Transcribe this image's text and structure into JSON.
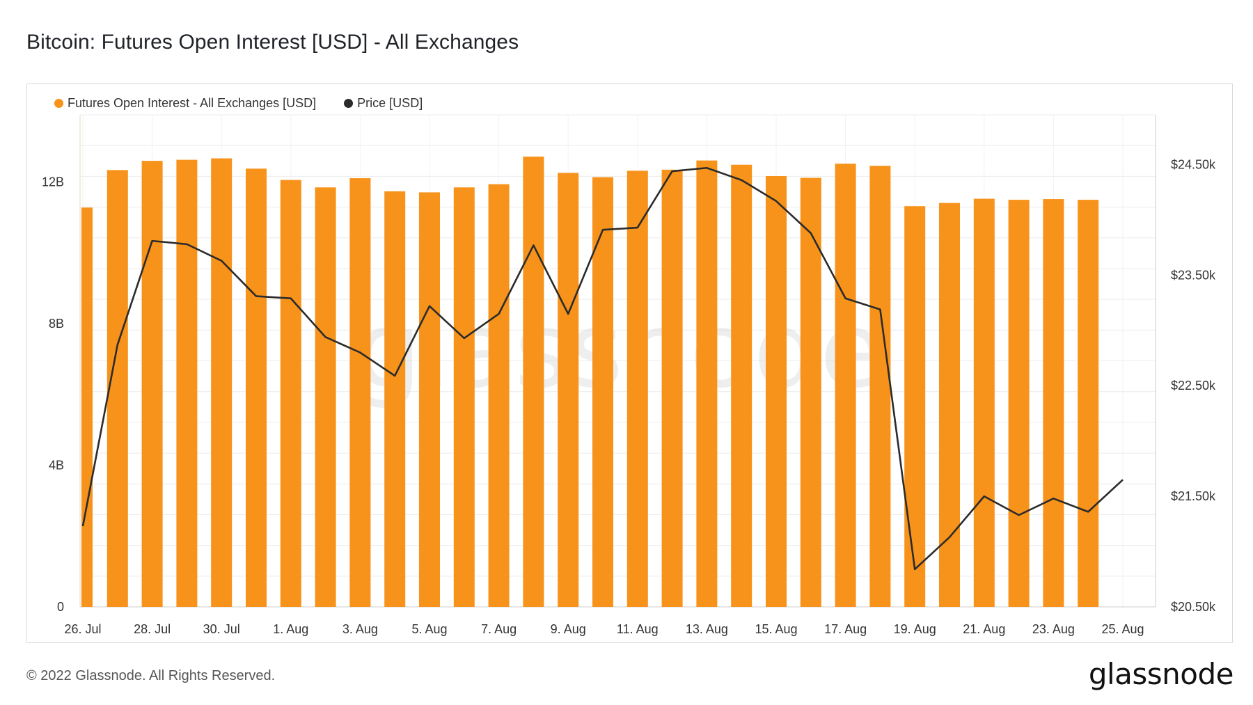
{
  "title": "Bitcoin: Futures Open Interest [USD] - All Exchanges",
  "footer": {
    "copyright": "© 2022 Glassnode. All Rights Reserved.",
    "brand": "glassnode"
  },
  "watermark": "glassnode",
  "colors": {
    "bars": "#F7931A",
    "price_line": "#2b2b2b",
    "grid": "#ececec",
    "axis": "#d9d9d9"
  },
  "chart_data": {
    "type": "bar",
    "title": "Bitcoin: Futures Open Interest [USD] - All Exchanges",
    "legend_position": "top-left",
    "grid": true,
    "x_tick_labels": [
      "26. Jul",
      "28. Jul",
      "30. Jul",
      "1. Aug",
      "3. Aug",
      "5. Aug",
      "7. Aug",
      "9. Aug",
      "11. Aug",
      "13. Aug",
      "15. Aug",
      "17. Aug",
      "19. Aug",
      "21. Aug",
      "23. Aug",
      "25. Aug"
    ],
    "categories": [
      "26. Jul",
      "27. Jul",
      "28. Jul",
      "29. Jul",
      "30. Jul",
      "31. Jul",
      "1. Aug",
      "2. Aug",
      "3. Aug",
      "4. Aug",
      "5. Aug",
      "6. Aug",
      "7. Aug",
      "8. Aug",
      "9. Aug",
      "10. Aug",
      "11. Aug",
      "12. Aug",
      "13. Aug",
      "14. Aug",
      "15. Aug",
      "16. Aug",
      "17. Aug",
      "18. Aug",
      "19. Aug",
      "20. Aug",
      "21. Aug",
      "22. Aug",
      "23. Aug",
      "24. Aug"
    ],
    "y_left": {
      "ticks": [
        0,
        4,
        8,
        12
      ],
      "tick_labels": [
        "0",
        "4B",
        "8B",
        "12B"
      ],
      "range": [
        0,
        13.9
      ],
      "unit": "B USD"
    },
    "y_right": {
      "ticks": [
        20500,
        21500,
        22500,
        23500,
        24500
      ],
      "tick_labels": [
        "$20.50k",
        "$21.50k",
        "$22.50k",
        "$23.50k",
        "$24.50k"
      ],
      "range": [
        20500,
        24950
      ],
      "unit": "USD"
    },
    "series": [
      {
        "name": "Futures Open Interest - All Exchanges [USD]",
        "type": "bar",
        "axis": "left",
        "color": "#F7931A",
        "values": [
          11.28,
          12.34,
          12.6,
          12.63,
          12.67,
          12.38,
          12.06,
          11.85,
          12.11,
          11.74,
          11.71,
          11.85,
          11.94,
          12.72,
          12.26,
          12.14,
          12.32,
          12.35,
          12.61,
          12.49,
          12.17,
          12.12,
          12.52,
          12.46,
          11.32,
          11.41,
          11.53,
          11.5,
          11.52,
          11.5
        ]
      },
      {
        "name": "Price [USD]",
        "type": "line",
        "axis": "right",
        "color": "#2b2b2b",
        "x": [
          "26. Jul",
          "27. Jul",
          "28. Jul",
          "29. Jul",
          "30. Jul",
          "31. Jul",
          "1. Aug",
          "2. Aug",
          "3. Aug",
          "4. Aug",
          "5. Aug",
          "6. Aug",
          "7. Aug",
          "8. Aug",
          "9. Aug",
          "10. Aug",
          "11. Aug",
          "12. Aug",
          "13. Aug",
          "14. Aug",
          "15. Aug",
          "16. Aug",
          "17. Aug",
          "18. Aug",
          "19. Aug",
          "20. Aug",
          "21. Aug",
          "22. Aug",
          "23. Aug",
          "24. Aug",
          "25. Aug"
        ],
        "values": [
          21230,
          22870,
          23810,
          23780,
          23630,
          23310,
          23290,
          22940,
          22800,
          22590,
          23220,
          22930,
          23150,
          23770,
          23150,
          23910,
          23930,
          24440,
          24470,
          24360,
          24170,
          23880,
          23290,
          23190,
          20840,
          21130,
          21500,
          21330,
          21480,
          21360,
          21650
        ]
      }
    ]
  }
}
